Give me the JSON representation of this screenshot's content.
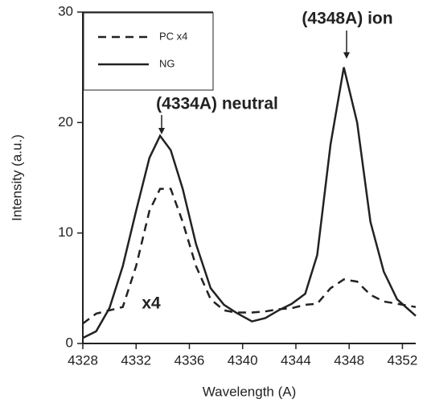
{
  "chart_data": {
    "type": "line",
    "x_label": "Wavelength (A)",
    "y_label": "Intensity (a.u.)",
    "x": [
      4328,
      4329,
      4330,
      4331,
      4332,
      4333,
      4333.8,
      4334.6,
      4335.5,
      4336.5,
      4337.6,
      4338.6,
      4339.5,
      4340.7,
      4341.7,
      4342.7,
      4343.7,
      4344.7,
      4345.6,
      4346.6,
      4347.6,
      4348.6,
      4349.6,
      4350.6,
      4351.6,
      4353
    ],
    "series": [
      {
        "name": "PC x4",
        "color": "#222222",
        "dash": true,
        "values": [
          1.8,
          2.7,
          3.0,
          3.3,
          7,
          12,
          14,
          14,
          11,
          7,
          4,
          3,
          2.8,
          2.8,
          2.9,
          3.1,
          3.2,
          3.5,
          3.6,
          5,
          5.8,
          5.6,
          4.4,
          3.8,
          3.6,
          3.3
        ]
      },
      {
        "name": "NG",
        "color": "#222222",
        "dash": false,
        "values": [
          0.5,
          1.1,
          3.2,
          7,
          12,
          16.8,
          18.8,
          17.5,
          14,
          9,
          5,
          3.5,
          2.8,
          2.0,
          2.3,
          3.0,
          3.6,
          4.5,
          8,
          18,
          25,
          20,
          11,
          6.5,
          4,
          2.5
        ]
      }
    ],
    "annotations": [
      "(4334A) neutral",
      "(4348A) ion",
      "x4"
    ],
    "xlim": [
      4328,
      4353
    ],
    "xticks": [
      4328,
      4332,
      4336,
      4340,
      4344,
      4348,
      4352
    ],
    "ylim": [
      0,
      30
    ],
    "yticks": [
      0,
      10,
      20,
      30
    ]
  }
}
